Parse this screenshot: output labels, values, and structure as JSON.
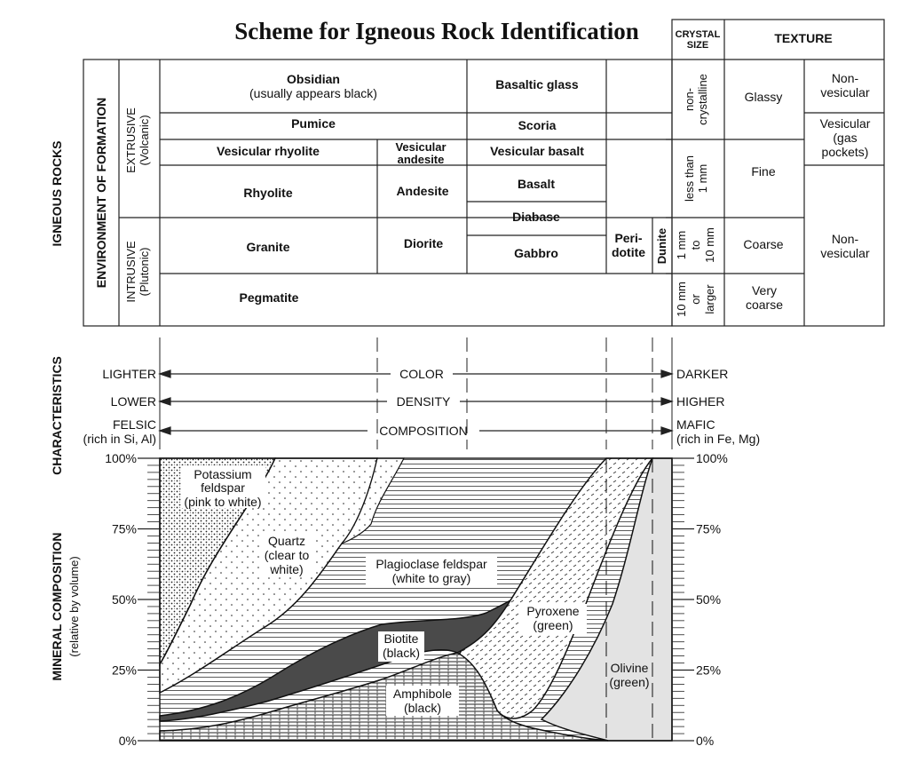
{
  "title": "Scheme for Igneous Rock Identification",
  "headers": {
    "crystal_size": [
      "CRYSTAL",
      "SIZE"
    ],
    "texture": "TEXTURE"
  },
  "side_labels": {
    "igneous_rocks": "IGNEOUS ROCKS",
    "environment": "ENVIRONMENT OF FORMATION",
    "extrusive": [
      "EXTRUSIVE",
      "(Volcanic)"
    ],
    "intrusive": [
      "INTRUSIVE",
      "(Plutonic)"
    ],
    "characteristics": "CHARACTERISTICS",
    "mineral_composition": [
      "MINERAL COMPOSITION",
      "(relative by volume)"
    ]
  },
  "rocks": {
    "obsidian": [
      "Obsidian",
      "(usually appears black)"
    ],
    "basaltic_glass": "Basaltic glass",
    "pumice": "Pumice",
    "scoria": "Scoria",
    "vesicular_rhyolite": "Vesicular rhyolite",
    "vesicular_andesite": [
      "Vesicular",
      "andesite"
    ],
    "vesicular_basalt": "Vesicular basalt",
    "rhyolite": "Rhyolite",
    "andesite": "Andesite",
    "basalt": "Basalt",
    "diabase": "Diabase",
    "granite": "Granite",
    "diorite": "Diorite",
    "gabbro": "Gabbro",
    "peridotite": [
      "Peri-",
      "dotite"
    ],
    "dunite": "Dunite",
    "pegmatite": "Pegmatite"
  },
  "crystal_sizes": {
    "noncrystalline": [
      "non-",
      "crystalline"
    ],
    "fine": [
      "less than",
      "1 mm"
    ],
    "coarse": [
      "1 mm",
      "to",
      "10 mm"
    ],
    "very_coarse": [
      "10 mm",
      "or",
      "larger"
    ]
  },
  "textures": {
    "glassy": "Glassy",
    "fine": "Fine",
    "coarse": "Coarse",
    "very_coarse": [
      "Very",
      "coarse"
    ],
    "nonvesicular_top": [
      "Non-",
      "vesicular"
    ],
    "vesicular": [
      "Vesicular",
      "(gas",
      "pockets)"
    ],
    "nonvesicular_bottom": [
      "Non-",
      "vesicular"
    ]
  },
  "characteristics": {
    "color": {
      "left": "LIGHTER",
      "center": "COLOR",
      "right": "DARKER"
    },
    "density": {
      "left": "LOWER",
      "center": "DENSITY",
      "right": "HIGHER"
    },
    "composition": {
      "left": [
        "FELSIC",
        "(rich in Si, Al)"
      ],
      "center": "COMPOSITION",
      "right": [
        "MAFIC",
        "(rich in Fe, Mg)"
      ]
    }
  },
  "percent_ticks": [
    "0%",
    "25%",
    "50%",
    "75%",
    "100%"
  ],
  "minerals": {
    "potassium_feldspar": [
      "Potassium",
      "feldspar",
      "(pink to white)"
    ],
    "quartz": [
      "Quartz",
      "(clear to",
      "white)"
    ],
    "plagioclase": [
      "Plagioclase feldspar",
      "(white to gray)"
    ],
    "biotite": [
      "Biotite",
      "(black)"
    ],
    "amphibole": [
      "Amphibole",
      "(black)"
    ],
    "pyroxene": [
      "Pyroxene",
      "(green)"
    ],
    "olivine": [
      "Olivine",
      "(green)"
    ]
  }
}
